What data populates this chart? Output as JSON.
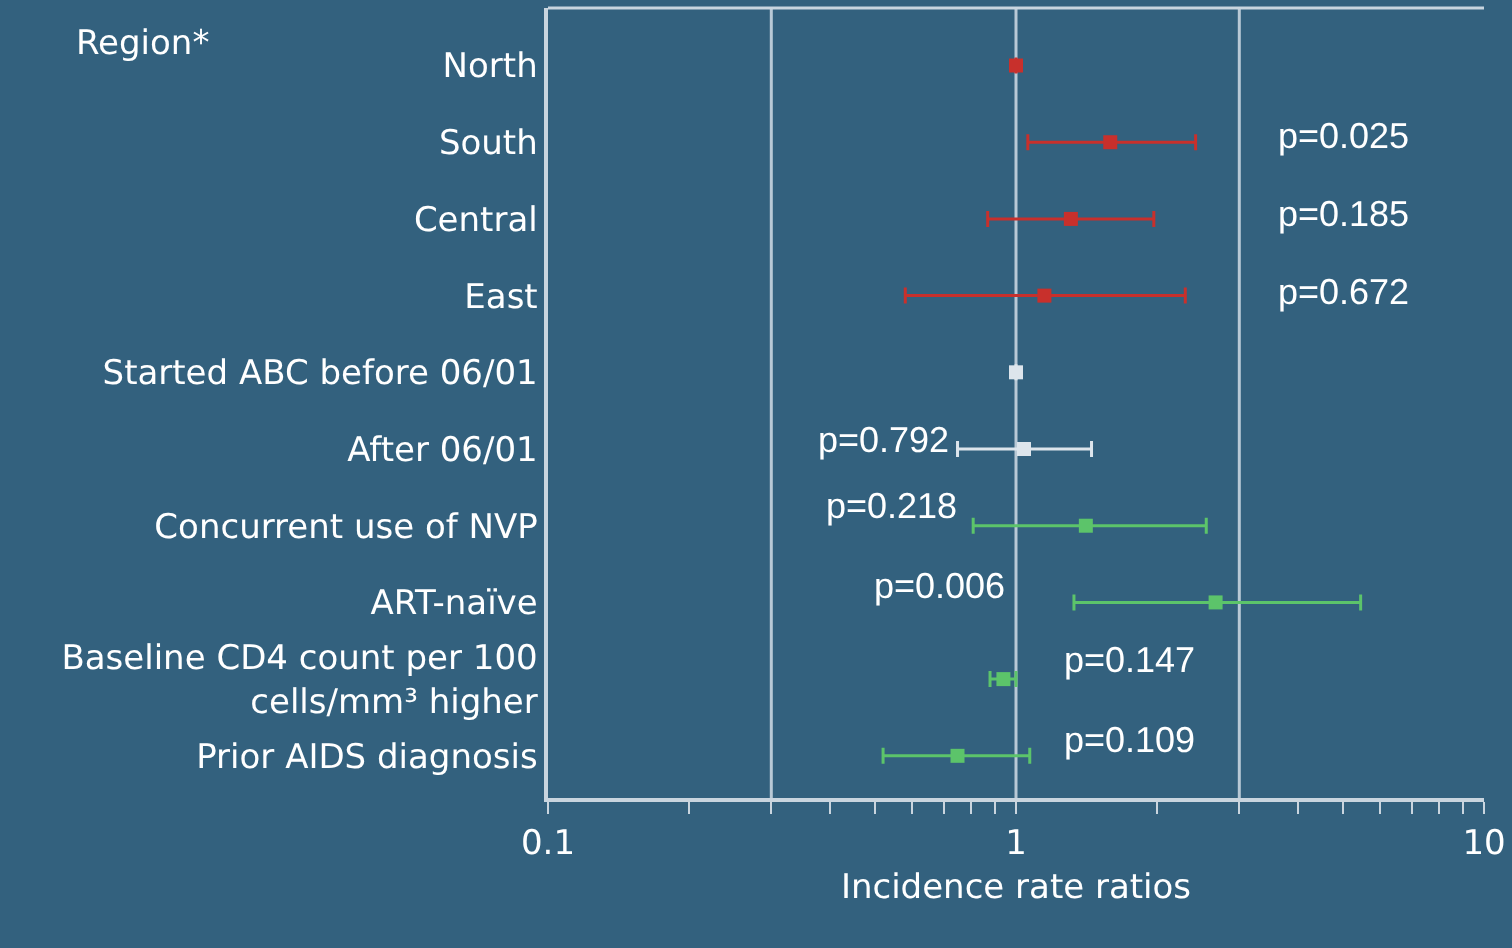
{
  "chart_data": {
    "type": "scatter",
    "orientation": "horizontal",
    "log": "x",
    "xlabel": "Incidence rate ratios",
    "categories": [
      "North",
      "South",
      "Central",
      "East",
      "Started ABC before 06/01",
      "After 06/01",
      "Concurrent use of NVP",
      "ART-naïve",
      "Baseline CD4 count per 100 cells/mm³ higher",
      "Prior AIDS diagnosis"
    ],
    "series": [
      {
        "color": "#c8302c",
        "values": [
          1,
          1.59,
          1.31,
          1.15,
          null,
          null,
          null,
          null,
          null,
          null
        ],
        "errors": [
          null,
          [
            1.06,
            2.42
          ],
          [
            0.87,
            1.97
          ],
          [
            0.58,
            2.3
          ],
          null,
          null,
          null,
          null,
          null,
          null
        ]
      },
      {
        "color": "#dde5ec",
        "values": [
          null,
          null,
          null,
          null,
          1,
          1.04,
          null,
          null,
          null,
          null
        ],
        "errors": [
          null,
          null,
          null,
          null,
          null,
          [
            0.75,
            1.45
          ],
          null,
          null,
          null,
          null
        ]
      },
      {
        "color": "#5cc46a",
        "values": [
          null,
          null,
          null,
          null,
          null,
          null,
          1.41,
          2.67,
          0.94,
          0.75
        ],
        "errors": [
          null,
          null,
          null,
          null,
          null,
          null,
          [
            0.81,
            2.55
          ],
          [
            1.33,
            5.45
          ],
          [
            0.88,
            1.0
          ],
          [
            0.52,
            1.07
          ]
        ]
      }
    ],
    "xlim": [
      0.1,
      10
    ],
    "xticks": [
      0.1,
      {
        "value": 0.2,
        "label": null
      },
      {
        "value": 0.3,
        "label": null
      },
      {
        "value": 0.4,
        "label": null
      },
      {
        "value": 0.5,
        "label": null
      },
      {
        "value": 0.6,
        "label": null
      },
      {
        "value": 0.7,
        "label": null
      },
      {
        "value": 0.8,
        "label": null
      },
      {
        "value": 0.9,
        "label": null
      },
      1,
      {
        "value": 2,
        "label": null
      },
      {
        "value": 3,
        "label": null
      },
      {
        "value": 4,
        "label": null
      },
      {
        "value": 5,
        "label": null
      },
      {
        "value": 6,
        "label": null
      },
      {
        "value": 7,
        "label": null
      },
      {
        "value": 8,
        "label": null
      },
      {
        "value": 9,
        "label": null
      },
      10
    ],
    "ref_lines": [
      {
        "axis": "x",
        "value": 0.3,
        "color": "#b9c9d6"
      },
      {
        "axis": "x",
        "value": 1,
        "color": "#b9c9d6"
      },
      {
        "axis": "x",
        "value": 3,
        "color": "#b9c9d6"
      }
    ],
    "marker": "square",
    "grid": false,
    "annotations": [
      "Region*",
      "p=0.025",
      "p=0.185",
      "p=0.672",
      "p=0.792",
      "p=0.218",
      "p=0.006",
      "p=0.147",
      "p=0.109"
    ]
  }
}
